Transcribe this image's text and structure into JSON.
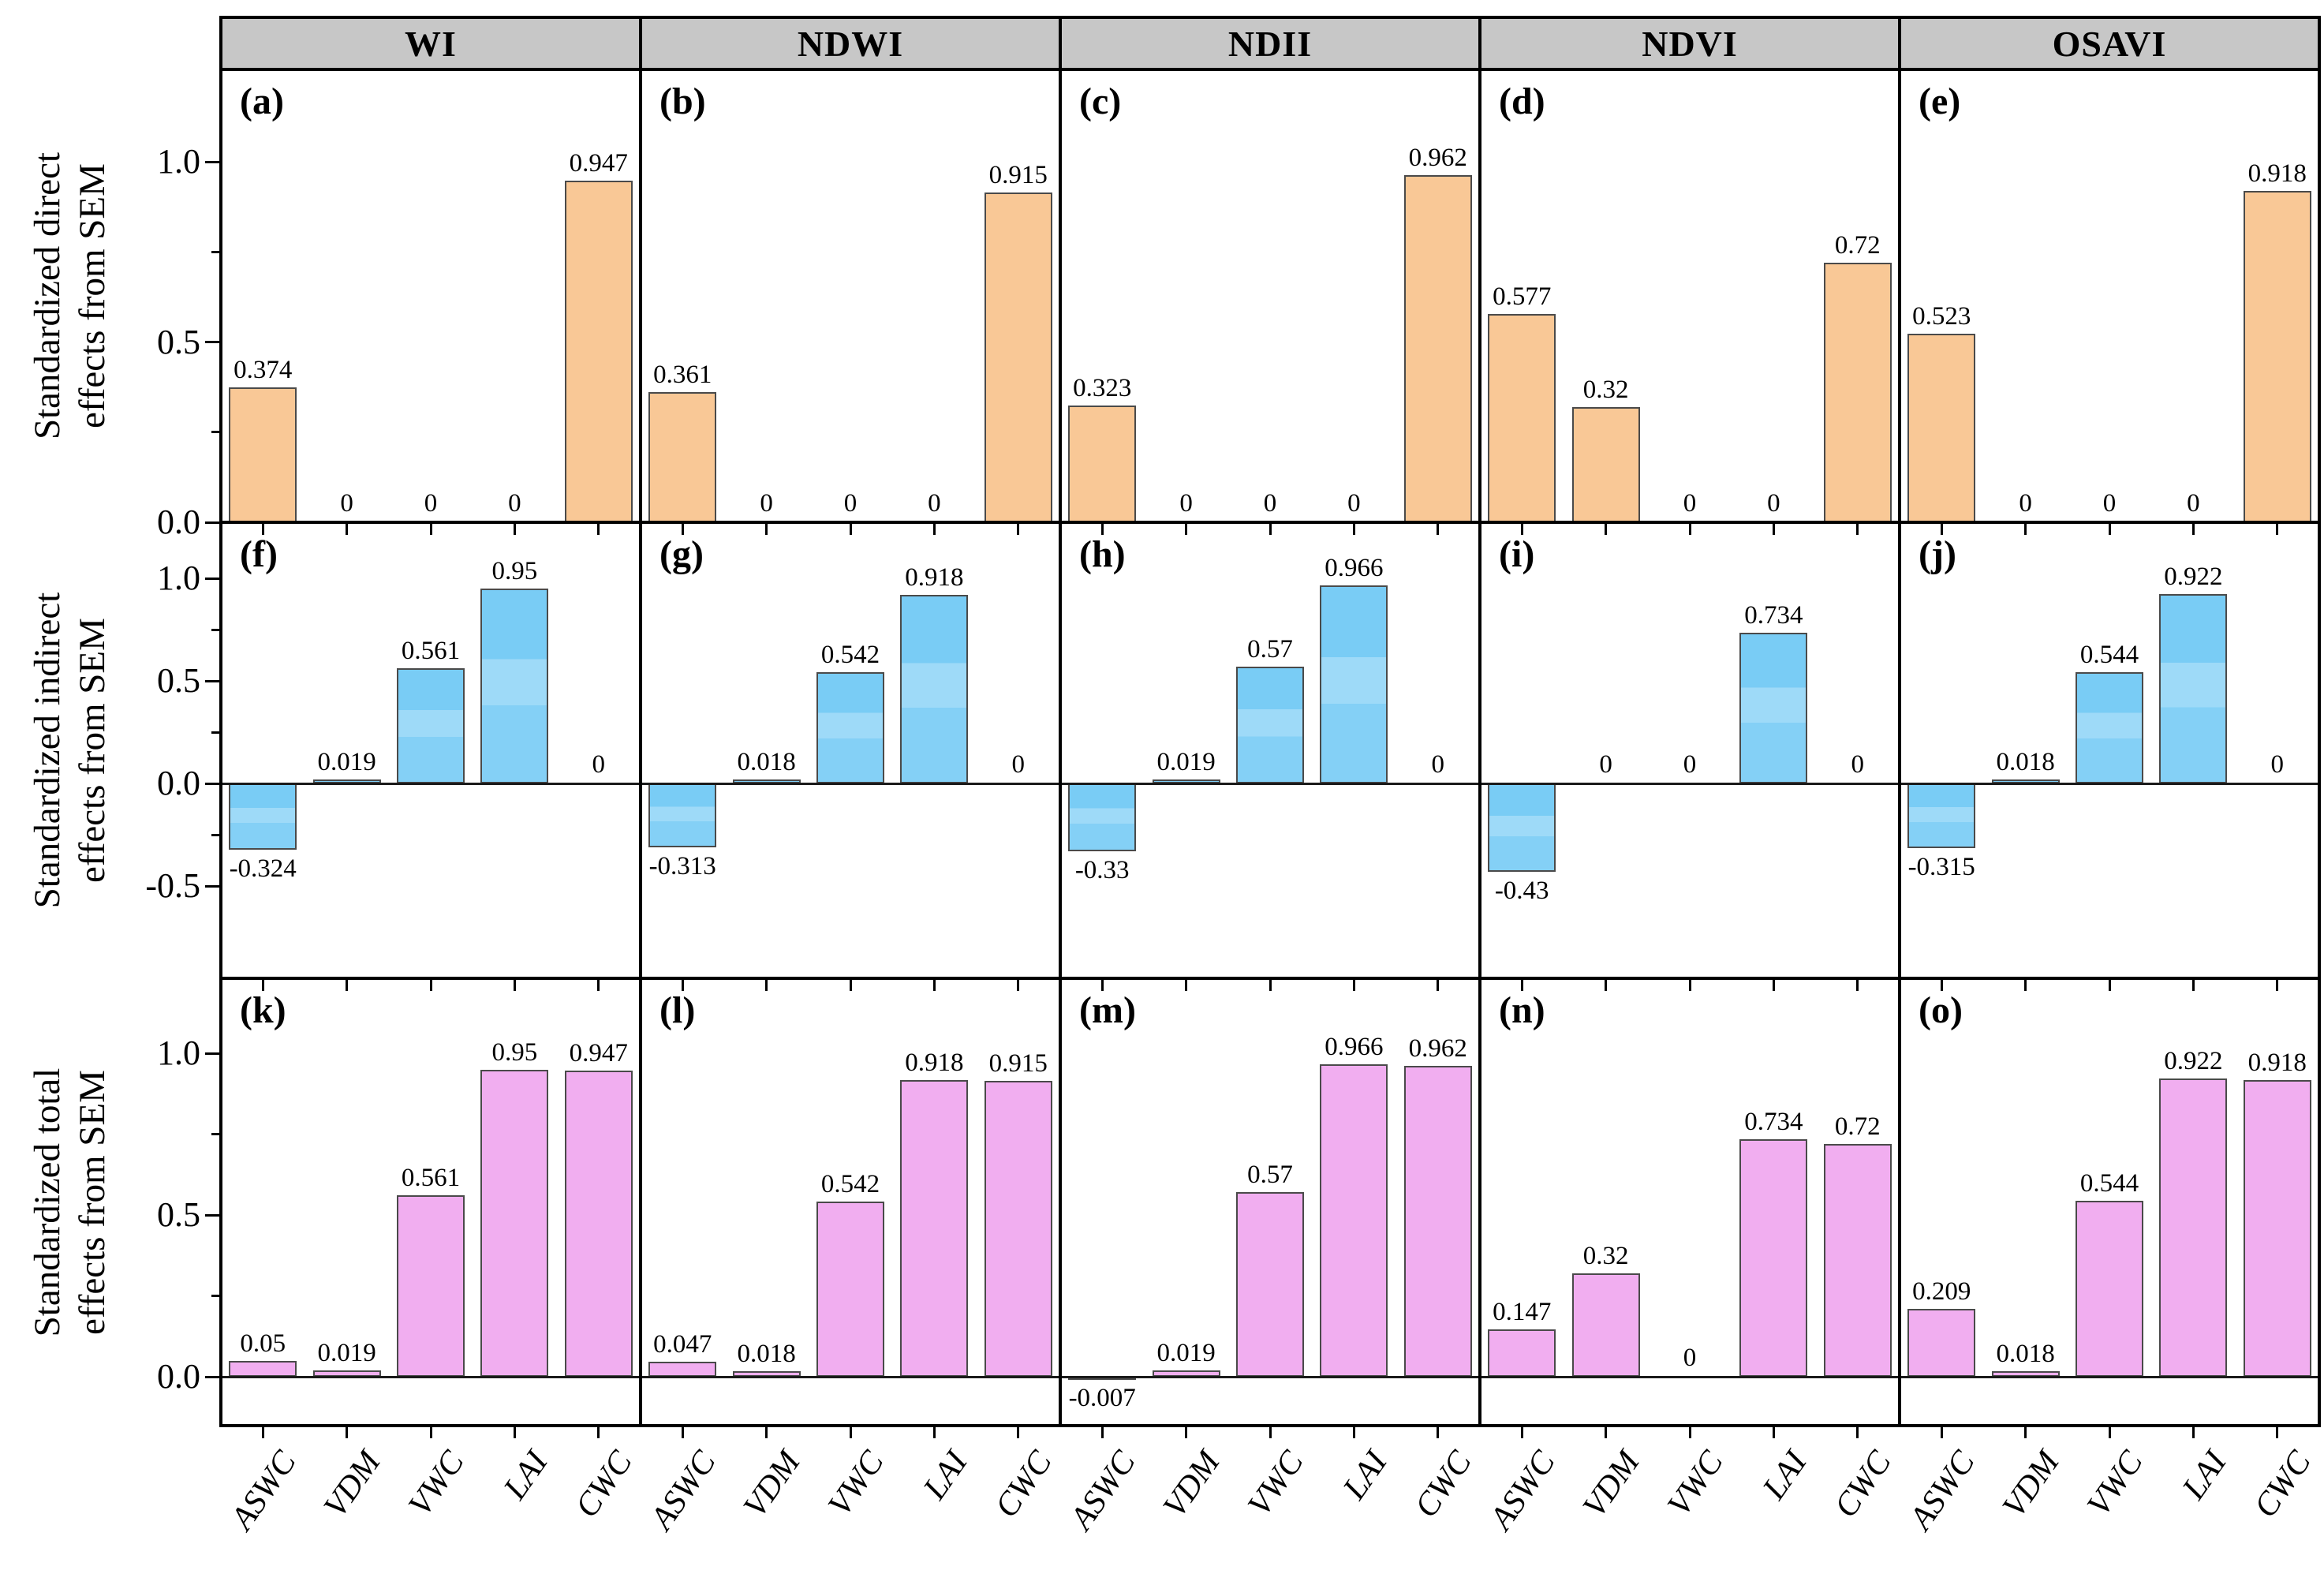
{
  "figure": {
    "kind": "multi-panel bar figure",
    "column_headers": [
      "WI",
      "NDWI",
      "NDII",
      "NDVI",
      "OSAVI"
    ],
    "categories": [
      "ASWC",
      "VDM",
      "VWC",
      "LAI",
      "CWC"
    ],
    "colors": {
      "direct_bar": "#f9c896",
      "indirect_bar": "#79ccf5",
      "total_bar": "#f1aef0",
      "header_bg": "#c7c7c7",
      "bar_border": "#4a4a4a",
      "axis_line": "#000000"
    }
  },
  "chart_data": {
    "type": "bar",
    "categories": [
      "ASWC",
      "VDM",
      "VWC",
      "LAI",
      "CWC"
    ],
    "column_headers": [
      "WI",
      "NDWI",
      "NDII",
      "NDVI",
      "OSAVI"
    ],
    "legend": "none",
    "grid_lines": "off",
    "rows": [
      {
        "row_id": "direct",
        "ylabel_lines": [
          "Standardized direct",
          "effects from SEM"
        ],
        "ytick_labels": [
          "1.0",
          "0.5",
          "0.0"
        ],
        "yticks": [
          1.0,
          0.5,
          0.0
        ],
        "ylim": [
          0,
          1.25
        ],
        "bar_color": "#f9c896",
        "panels": [
          {
            "letter": "(a)",
            "column": "WI",
            "values": [
              0.374,
              0,
              0,
              0,
              0.947
            ],
            "value_labels": [
              "0.374",
              "0",
              "0",
              "0",
              "0.947"
            ]
          },
          {
            "letter": "(b)",
            "column": "NDWI",
            "values": [
              0.361,
              0,
              0,
              0,
              0.915
            ],
            "value_labels": [
              "0.361",
              "0",
              "0",
              "0",
              "0.915"
            ]
          },
          {
            "letter": "(c)",
            "column": "NDII",
            "values": [
              0.323,
              0,
              0,
              0,
              0.962
            ],
            "value_labels": [
              "0.323",
              "0",
              "0",
              "0",
              "0.962"
            ]
          },
          {
            "letter": "(d)",
            "column": "NDVI",
            "values": [
              0.577,
              0.32,
              0,
              0,
              0.72
            ],
            "value_labels": [
              "0.577",
              "0.32",
              "0",
              "0",
              "0.72"
            ]
          },
          {
            "letter": "(e)",
            "column": "OSAVI",
            "values": [
              0.523,
              0,
              0,
              0,
              0.918
            ],
            "value_labels": [
              "0.523",
              "0",
              "0",
              "0",
              "0.918"
            ]
          }
        ]
      },
      {
        "row_id": "indirect",
        "ylabel_lines": [
          "Standardized indirect",
          "effects from SEM"
        ],
        "ytick_labels": [
          "1.0",
          "0.5",
          "0.0",
          "-0.5"
        ],
        "yticks": [
          1.0,
          0.5,
          0.0,
          -0.5
        ],
        "ylim": [
          -0.95,
          1.27
        ],
        "bar_color": "#79ccf5",
        "panels": [
          {
            "letter": "(f)",
            "column": "WI",
            "values": [
              -0.324,
              0.019,
              0.561,
              0.95,
              0
            ],
            "value_labels": [
              "-0.324",
              "0.019",
              "0.561",
              "0.95",
              "0"
            ]
          },
          {
            "letter": "(g)",
            "column": "NDWI",
            "values": [
              -0.313,
              0.018,
              0.542,
              0.918,
              0
            ],
            "value_labels": [
              "-0.313",
              "0.018",
              "0.542",
              "0.918",
              "0"
            ]
          },
          {
            "letter": "(h)",
            "column": "NDII",
            "values": [
              -0.33,
              0.019,
              0.57,
              0.966,
              0
            ],
            "value_labels": [
              "-0.33",
              "0.019",
              "0.57",
              "0.966",
              "0"
            ]
          },
          {
            "letter": "(i)",
            "column": "NDVI",
            "values": [
              -0.43,
              0,
              0,
              0.734,
              0
            ],
            "value_labels": [
              "-0.43",
              "0",
              "0",
              "0.734",
              "0"
            ]
          },
          {
            "letter": "(j)",
            "column": "OSAVI",
            "values": [
              -0.315,
              0.018,
              0.544,
              0.922,
              0
            ],
            "value_labels": [
              "-0.315",
              "0.018",
              "0.544",
              "0.922",
              "0"
            ]
          }
        ]
      },
      {
        "row_id": "total",
        "ylabel_lines": [
          "Standardized total",
          "effects from SEM"
        ],
        "ytick_labels": [
          "1.0",
          "0.5",
          "0.0"
        ],
        "yticks": [
          1.0,
          0.5,
          0.0
        ],
        "ylim": [
          -0.15,
          1.23
        ],
        "bar_color": "#f1aef0",
        "panels": [
          {
            "letter": "(k)",
            "column": "WI",
            "values": [
              0.05,
              0.019,
              0.561,
              0.95,
              0.947
            ],
            "value_labels": [
              "0.05",
              "0.019",
              "0.561",
              "0.95",
              "0.947"
            ]
          },
          {
            "letter": "(l)",
            "column": "NDWI",
            "values": [
              0.047,
              0.018,
              0.542,
              0.918,
              0.915
            ],
            "value_labels": [
              "0.047",
              "0.018",
              "0.542",
              "0.918",
              "0.915"
            ]
          },
          {
            "letter": "(m)",
            "column": "NDII",
            "values": [
              -0.007,
              0.019,
              0.57,
              0.966,
              0.962
            ],
            "value_labels": [
              "-0.007",
              "0.019",
              "0.57",
              "0.966",
              "0.962"
            ]
          },
          {
            "letter": "(n)",
            "column": "NDVI",
            "values": [
              0.147,
              0.32,
              0,
              0.734,
              0.72
            ],
            "value_labels": [
              "0.147",
              "0.32",
              "0",
              "0.734",
              "0.72"
            ]
          },
          {
            "letter": "(o)",
            "column": "OSAVI",
            "values": [
              0.209,
              0.018,
              0.544,
              0.922,
              0.918
            ],
            "value_labels": [
              "0.209",
              "0.018",
              "0.544",
              "0.922",
              "0.918"
            ]
          }
        ]
      }
    ]
  }
}
